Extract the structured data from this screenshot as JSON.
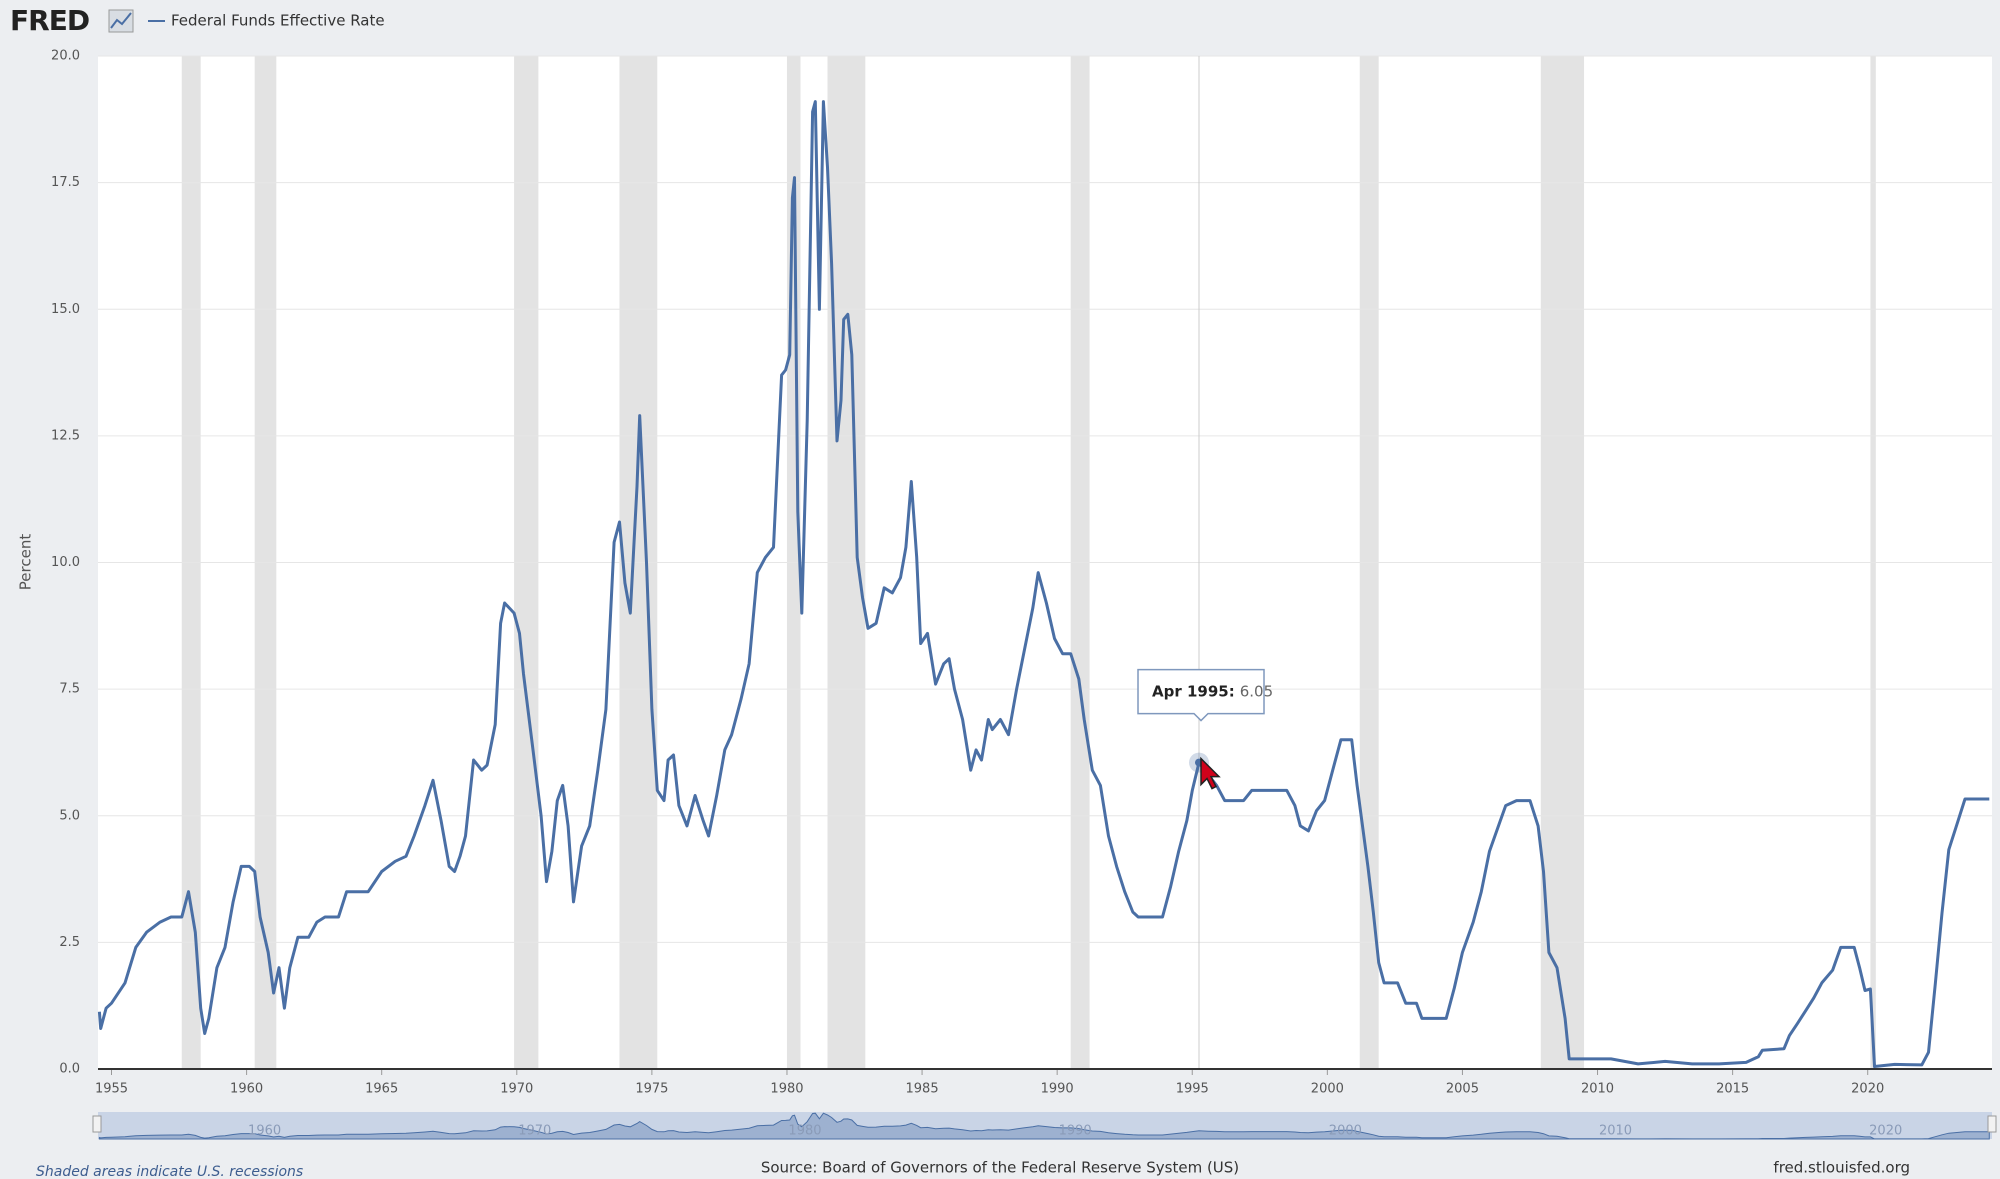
{
  "header": {
    "logo": "FRED"
  },
  "chart_data": {
    "type": "line",
    "y_label": "Percent",
    "series": [
      {
        "name": "Federal Funds Effective Rate",
        "color": "#4a6fa5",
        "x": [
          1954.55,
          1954.6,
          1954.8,
          1955.0,
          1955.5,
          1955.9,
          1956.3,
          1956.8,
          1957.2,
          1957.6,
          1957.85,
          1958.1,
          1958.3,
          1958.45,
          1958.6,
          1958.9,
          1959.2,
          1959.5,
          1959.8,
          1960.1,
          1960.3,
          1960.5,
          1960.8,
          1961.0,
          1961.2,
          1961.4,
          1961.6,
          1961.9,
          1962.3,
          1962.6,
          1962.9,
          1963.4,
          1963.7,
          1964.0,
          1964.5,
          1965.0,
          1965.5,
          1965.9,
          1966.2,
          1966.6,
          1966.9,
          1967.2,
          1967.5,
          1967.7,
          1967.9,
          1968.1,
          1968.4,
          1968.7,
          1968.9,
          1969.2,
          1969.4,
          1969.55,
          1969.9,
          1970.1,
          1970.25,
          1970.6,
          1970.9,
          1971.1,
          1971.3,
          1971.5,
          1971.7,
          1971.9,
          1972.1,
          1972.4,
          1972.7,
          1973.0,
          1973.3,
          1973.6,
          1973.8,
          1974.0,
          1974.2,
          1974.45,
          1974.55,
          1974.8,
          1975.0,
          1975.2,
          1975.45,
          1975.6,
          1975.8,
          1976.0,
          1976.3,
          1976.6,
          1976.9,
          1977.1,
          1977.4,
          1977.7,
          1977.95,
          1978.3,
          1978.6,
          1978.9,
          1979.2,
          1979.5,
          1979.8,
          1979.95,
          1980.1,
          1980.2,
          1980.28,
          1980.4,
          1980.55,
          1980.75,
          1980.95,
          1981.05,
          1981.2,
          1981.35,
          1981.5,
          1981.65,
          1981.85,
          1982.0,
          1982.1,
          1982.25,
          1982.4,
          1982.6,
          1982.8,
          1983.0,
          1983.3,
          1983.6,
          1983.9,
          1984.2,
          1984.4,
          1984.6,
          1984.8,
          1984.95,
          1985.2,
          1985.5,
          1985.8,
          1986.0,
          1986.2,
          1986.5,
          1986.8,
          1987.0,
          1987.2,
          1987.45,
          1987.6,
          1987.9,
          1988.2,
          1988.5,
          1988.8,
          1989.1,
          1989.3,
          1989.6,
          1989.9,
          1990.2,
          1990.5,
          1990.8,
          1991.0,
          1991.3,
          1991.6,
          1991.9,
          1992.2,
          1992.5,
          1992.8,
          1993.0,
          1993.5,
          1993.9,
          1994.2,
          1994.5,
          1994.8,
          1995.0,
          1995.25,
          1995.6,
          1995.9,
          1996.2,
          1996.6,
          1996.9,
          1997.2,
          1997.6,
          1998.0,
          1998.5,
          1998.8,
          1999.0,
          1999.3,
          1999.6,
          1999.9,
          2000.2,
          2000.5,
          2000.9,
          2001.1,
          2001.3,
          2001.5,
          2001.7,
          2001.9,
          2002.1,
          2002.6,
          2002.9,
          2003.3,
          2003.5,
          2004.0,
          2004.4,
          2004.7,
          2005.0,
          2005.4,
          2005.7,
          2006.0,
          2006.4,
          2006.6,
          2007.0,
          2007.5,
          2007.8,
          2008.0,
          2008.2,
          2008.5,
          2008.8,
          2008.95,
          2009.5,
          2010.5,
          2011.5,
          2012.5,
          2013.5,
          2014.5,
          2015.5,
          2015.95,
          2016.1,
          2016.9,
          2017.1,
          2017.4,
          2017.7,
          2018.0,
          2018.3,
          2018.7,
          2019.0,
          2019.5,
          2019.7,
          2019.9,
          2020.1,
          2020.25,
          2021.0,
          2022.0,
          2022.25,
          2022.5,
          2022.75,
          2023.0,
          2023.3,
          2023.6,
          2024.5
        ],
        "values": [
          1.13,
          0.8,
          1.2,
          1.3,
          1.7,
          2.4,
          2.7,
          2.9,
          3.0,
          3.0,
          3.5,
          2.7,
          1.2,
          0.7,
          1.0,
          2.0,
          2.4,
          3.3,
          4.0,
          4.0,
          3.9,
          3.0,
          2.3,
          1.5,
          2.0,
          1.2,
          2.0,
          2.6,
          2.6,
          2.9,
          3.0,
          3.0,
          3.5,
          3.5,
          3.5,
          3.9,
          4.1,
          4.2,
          4.6,
          5.2,
          5.7,
          4.9,
          4.0,
          3.9,
          4.2,
          4.6,
          6.1,
          5.9,
          6.0,
          6.8,
          8.8,
          9.2,
          9.0,
          8.6,
          7.8,
          6.3,
          5.0,
          3.7,
          4.3,
          5.3,
          5.6,
          4.8,
          3.3,
          4.4,
          4.8,
          5.9,
          7.1,
          10.4,
          10.8,
          9.6,
          9.0,
          11.5,
          12.9,
          10.0,
          7.1,
          5.5,
          5.3,
          6.1,
          6.2,
          5.2,
          4.8,
          5.4,
          4.9,
          4.6,
          5.4,
          6.3,
          6.6,
          7.3,
          8.0,
          9.8,
          10.1,
          10.3,
          13.7,
          13.8,
          14.1,
          17.2,
          17.6,
          11.0,
          9.0,
          12.8,
          18.9,
          19.1,
          15.0,
          19.1,
          17.8,
          15.9,
          12.4,
          13.2,
          14.8,
          14.9,
          14.1,
          10.1,
          9.3,
          8.7,
          8.8,
          9.5,
          9.4,
          9.7,
          10.3,
          11.6,
          10.1,
          8.4,
          8.6,
          7.6,
          8.0,
          8.1,
          7.5,
          6.9,
          5.9,
          6.3,
          6.1,
          6.9,
          6.7,
          6.9,
          6.6,
          7.5,
          8.3,
          9.1,
          9.8,
          9.2,
          8.5,
          8.2,
          8.2,
          7.7,
          6.9,
          5.9,
          5.6,
          4.6,
          4.0,
          3.5,
          3.1,
          3.0,
          3.0,
          3.0,
          3.6,
          4.3,
          4.9,
          5.5,
          6.05,
          5.8,
          5.6,
          5.3,
          5.3,
          5.3,
          5.5,
          5.5,
          5.5,
          5.5,
          5.2,
          4.8,
          4.7,
          5.1,
          5.3,
          5.9,
          6.5,
          6.5,
          5.6,
          4.8,
          4.0,
          3.1,
          2.1,
          1.7,
          1.7,
          1.3,
          1.3,
          1.0,
          1.0,
          1.0,
          1.6,
          2.3,
          2.9,
          3.5,
          4.3,
          4.9,
          5.2,
          5.3,
          5.3,
          4.8,
          3.9,
          2.3,
          2.0,
          1.0,
          0.2,
          0.2,
          0.2,
          0.1,
          0.15,
          0.1,
          0.1,
          0.13,
          0.24,
          0.37,
          0.4,
          0.66,
          0.9,
          1.15,
          1.4,
          1.7,
          1.95,
          2.4,
          2.4,
          2.0,
          1.55,
          1.58,
          0.05,
          0.09,
          0.08,
          0.33,
          1.68,
          3.08,
          4.33,
          4.83,
          5.33,
          5.33
        ]
      }
    ],
    "recessions": [
      [
        1957.6,
        1958.3
      ],
      [
        1960.3,
        1961.1
      ],
      [
        1969.9,
        1970.8
      ],
      [
        1973.8,
        1975.2
      ],
      [
        1980.0,
        1980.5
      ],
      [
        1981.5,
        1982.9
      ],
      [
        1990.5,
        1991.2
      ],
      [
        2001.2,
        2001.9
      ],
      [
        2007.9,
        2009.5
      ],
      [
        2020.1,
        2020.3
      ]
    ],
    "xlim": [
      1954.5,
      2024.6
    ],
    "xticks": [
      1955,
      1960,
      1965,
      1970,
      1975,
      1980,
      1985,
      1990,
      1995,
      2000,
      2005,
      2010,
      2015,
      2020
    ],
    "ylim": [
      0,
      20
    ],
    "yticks": [
      {
        "value": 0,
        "label": "0.0"
      },
      2.5,
      {
        "value": 5,
        "label": "5.0"
      },
      7.5,
      {
        "value": 10,
        "label": "10.0"
      },
      12.5,
      {
        "value": 15,
        "label": "15.0"
      },
      17.5,
      {
        "value": 20,
        "label": "20.0"
      }
    ],
    "grid": true,
    "tooltip": {
      "label": "Apr 1995:",
      "value": 6.05,
      "x": 1995.25
    },
    "navigator_ticks": [
      1960,
      1970,
      1980,
      1990,
      2000,
      2010,
      2020
    ],
    "recession_note": "Shaded areas indicate U.S. recessions",
    "source": "Source: Board of Governors of the Federal Reserve System (US)",
    "site": "fred.stlouisfed.org"
  }
}
